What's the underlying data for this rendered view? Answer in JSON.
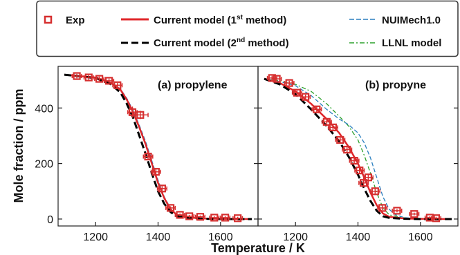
{
  "legend": {
    "exp": "Exp",
    "m1_main": "Current model (1",
    "m1_sup": "st",
    "m1_end": " method)",
    "m2_main": "Current model (2",
    "m2_sup": "nd",
    "m2_end": " method)",
    "nui": "NUIMech1.0",
    "llnl": "LLNL model",
    "placement": "top, outside plots"
  },
  "colors": {
    "exp": "#d62f2f",
    "m1": "#e0262a",
    "m2": "#000000",
    "nui": "#2a7fbf",
    "llnl": "#2ca02c"
  },
  "axes": {
    "xlabel": "Temperature / K",
    "ylabel": "Mole fraction / ppm",
    "xlim": [
      1080,
      1720
    ],
    "ylim": [
      -25,
      550
    ],
    "xticks": [
      1200,
      1400,
      1600
    ],
    "yticks": [
      0,
      200,
      400
    ]
  },
  "chart_data": [
    {
      "type": "line",
      "title": "(a) propylene",
      "grid": false,
      "exp": {
        "x": [
          1140,
          1178,
          1212,
          1243,
          1270,
          1318,
          1343,
          1368,
          1393,
          1413,
          1440,
          1470,
          1500,
          1535,
          1580,
          1615,
          1655
        ],
        "y": [
          515,
          510,
          505,
          498,
          482,
          385,
          375,
          225,
          170,
          110,
          40,
          15,
          10,
          8,
          5,
          5,
          3
        ],
        "xerr": [
          15,
          15,
          15,
          15,
          15,
          15,
          25,
          15,
          15,
          15,
          15,
          15,
          15,
          15,
          15,
          15,
          15
        ],
        "yerr": [
          8,
          8,
          8,
          8,
          8,
          20,
          15,
          10,
          10,
          8,
          6,
          5,
          5,
          5,
          5,
          5,
          5
        ]
      },
      "series": [
        {
          "name": "Current model (1st method)",
          "x": [
            1100,
            1200,
            1250,
            1280,
            1300,
            1320,
            1340,
            1360,
            1380,
            1400,
            1420,
            1440,
            1460,
            1500,
            1550,
            1600,
            1700
          ],
          "y": [
            520,
            510,
            490,
            465,
            430,
            385,
            330,
            270,
            200,
            130,
            75,
            35,
            15,
            5,
            2,
            1,
            0
          ]
        },
        {
          "name": "Current model (2nd method)",
          "x": [
            1100,
            1200,
            1250,
            1280,
            1300,
            1320,
            1340,
            1360,
            1380,
            1400,
            1420,
            1440,
            1460,
            1500,
            1550,
            1600,
            1700
          ],
          "y": [
            520,
            508,
            485,
            455,
            415,
            365,
            300,
            235,
            165,
            100,
            55,
            25,
            10,
            3,
            1,
            0,
            0
          ]
        },
        {
          "name": "NUIMech1.0",
          "x": [
            1100,
            1200,
            1250,
            1280,
            1300,
            1320,
            1340,
            1360,
            1380,
            1400,
            1420,
            1440,
            1460,
            1500,
            1550,
            1600,
            1700
          ],
          "y": [
            520,
            510,
            492,
            468,
            435,
            392,
            338,
            280,
            210,
            140,
            80,
            38,
            16,
            5,
            2,
            1,
            0
          ]
        },
        {
          "name": "LLNL model",
          "x": [
            1100,
            1200,
            1250,
            1280,
            1300,
            1320,
            1340,
            1360,
            1380,
            1400,
            1420,
            1440,
            1460,
            1500,
            1550,
            1600,
            1700
          ],
          "y": [
            520,
            510,
            490,
            466,
            432,
            388,
            334,
            275,
            205,
            135,
            78,
            36,
            15,
            5,
            2,
            1,
            0
          ]
        }
      ]
    },
    {
      "type": "line",
      "title": "(b) propyne",
      "grid": false,
      "exp": {
        "x": [
          1125,
          1140,
          1180,
          1205,
          1232,
          1268,
          1300,
          1320,
          1343,
          1365,
          1388,
          1405,
          1418,
          1433,
          1455,
          1478,
          1525,
          1580,
          1630,
          1650
        ],
        "y": [
          508,
          505,
          490,
          455,
          440,
          395,
          350,
          330,
          285,
          250,
          210,
          175,
          130,
          150,
          100,
          40,
          30,
          18,
          5,
          3
        ],
        "xerr": [
          15,
          15,
          15,
          15,
          15,
          15,
          15,
          15,
          15,
          15,
          15,
          15,
          15,
          15,
          15,
          15,
          15,
          15,
          15,
          15
        ],
        "yerr": [
          8,
          8,
          8,
          8,
          8,
          10,
          10,
          10,
          10,
          10,
          10,
          12,
          12,
          12,
          10,
          8,
          6,
          5,
          5,
          5
        ]
      },
      "series": [
        {
          "name": "Current model (1st method)",
          "x": [
            1100,
            1150,
            1200,
            1250,
            1300,
            1340,
            1370,
            1400,
            1420,
            1440,
            1460,
            1480,
            1500,
            1550,
            1600,
            1700
          ],
          "y": [
            505,
            490,
            460,
            415,
            360,
            310,
            260,
            200,
            150,
            95,
            50,
            20,
            8,
            2,
            1,
            0
          ]
        },
        {
          "name": "Current model (2nd method)",
          "x": [
            1100,
            1150,
            1200,
            1250,
            1300,
            1340,
            1370,
            1400,
            1420,
            1440,
            1460,
            1480,
            1500,
            1550,
            1600,
            1700
          ],
          "y": [
            505,
            485,
            450,
            395,
            335,
            280,
            225,
            160,
            110,
            65,
            30,
            10,
            4,
            1,
            0,
            0
          ]
        },
        {
          "name": "NUIMech1.0",
          "x": [
            1100,
            1150,
            1200,
            1250,
            1300,
            1340,
            1370,
            1400,
            1420,
            1440,
            1460,
            1480,
            1500,
            1520,
            1550,
            1600,
            1700
          ],
          "y": [
            505,
            495,
            480,
            445,
            395,
            360,
            340,
            310,
            275,
            220,
            150,
            80,
            35,
            15,
            5,
            1,
            0
          ]
        },
        {
          "name": "LLNL model",
          "x": [
            1100,
            1150,
            1200,
            1250,
            1300,
            1340,
            1370,
            1400,
            1420,
            1440,
            1460,
            1480,
            1500,
            1550,
            1600,
            1700
          ],
          "y": [
            505,
            498,
            485,
            460,
            415,
            370,
            335,
            285,
            230,
            165,
            95,
            40,
            15,
            4,
            1,
            0
          ]
        }
      ]
    }
  ]
}
